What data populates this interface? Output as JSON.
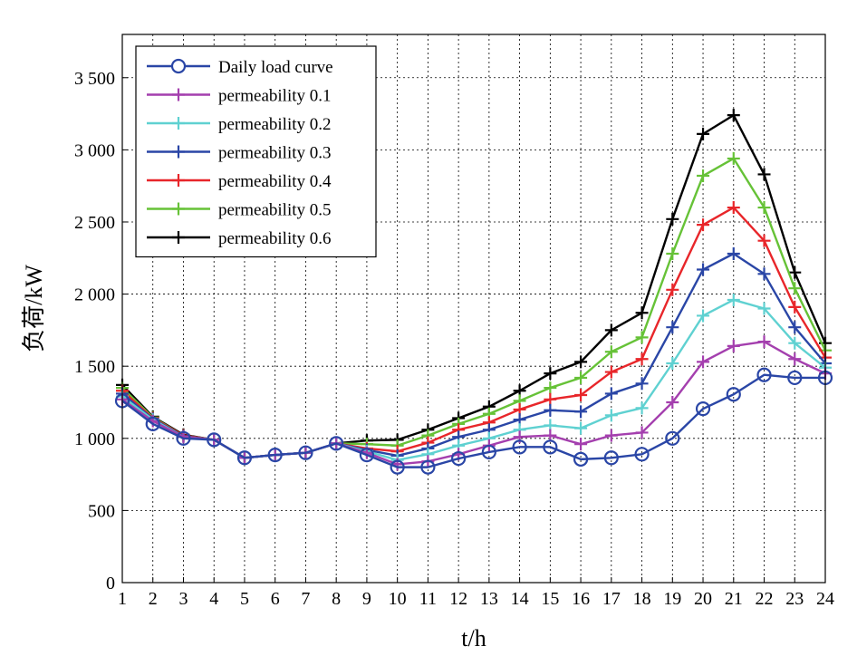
{
  "chart_data": {
    "type": "line",
    "xlabel": "t/h",
    "ylabel": "负荷/kW",
    "x": [
      1,
      2,
      3,
      4,
      5,
      6,
      7,
      8,
      9,
      10,
      11,
      12,
      13,
      14,
      15,
      16,
      17,
      18,
      19,
      20,
      21,
      22,
      23,
      24
    ],
    "xlim": [
      1,
      24
    ],
    "ylim": [
      0,
      3800
    ],
    "yticks": [
      0,
      500,
      1000,
      1500,
      2000,
      2500,
      3000,
      3500
    ],
    "ytick_labels": [
      "0",
      "500",
      "1 000",
      "1 500",
      "2 000",
      "2 500",
      "3 000",
      "3 500"
    ],
    "xtick_labels": [
      "1",
      "2",
      "3",
      "4",
      "5",
      "6",
      "7",
      "8",
      "9",
      "10",
      "11",
      "12",
      "13",
      "14",
      "15",
      "16",
      "17",
      "18",
      "19",
      "20",
      "21",
      "22",
      "23",
      "24"
    ],
    "grid": true,
    "legend_position": "top-left",
    "series": [
      {
        "name": "Daily load curve",
        "color": "#2a46a6",
        "marker": "circle",
        "values": [
          1260,
          1100,
          1000,
          990,
          865,
          885,
          900,
          965,
          885,
          800,
          800,
          860,
          905,
          940,
          940,
          855,
          865,
          890,
          1000,
          1205,
          1305,
          1440,
          1420,
          1420
        ]
      },
      {
        "name": "permeability 0.1",
        "color": "#a43fae",
        "marker": "plus",
        "values": [
          1270,
          1120,
          1010,
          990,
          865,
          885,
          900,
          965,
          900,
          820,
          840,
          890,
          950,
          1010,
          1020,
          960,
          1020,
          1040,
          1250,
          1530,
          1640,
          1670,
          1550,
          1450
        ]
      },
      {
        "name": "permeability 0.2",
        "color": "#5fd1d1",
        "marker": "plus",
        "values": [
          1290,
          1130,
          1010,
          990,
          865,
          885,
          900,
          965,
          910,
          850,
          890,
          950,
          1000,
          1060,
          1090,
          1070,
          1160,
          1210,
          1520,
          1850,
          1960,
          1900,
          1660,
          1490
        ]
      },
      {
        "name": "permeability 0.3",
        "color": "#2a46a6",
        "marker": "plus",
        "values": [
          1310,
          1135,
          1015,
          990,
          865,
          885,
          900,
          965,
          920,
          880,
          930,
          1010,
          1060,
          1130,
          1195,
          1185,
          1310,
          1380,
          1770,
          2170,
          2280,
          2140,
          1770,
          1520
        ]
      },
      {
        "name": "permeability 0.4",
        "color": "#e8262a",
        "marker": "plus",
        "values": [
          1330,
          1140,
          1020,
          990,
          865,
          885,
          900,
          965,
          930,
          910,
          970,
          1060,
          1110,
          1200,
          1270,
          1300,
          1460,
          1550,
          2030,
          2480,
          2600,
          2370,
          1910,
          1560
        ]
      },
      {
        "name": "permeability 0.5",
        "color": "#66c237",
        "marker": "plus",
        "values": [
          1350,
          1145,
          1020,
          990,
          865,
          885,
          900,
          965,
          960,
          950,
          1020,
          1100,
          1170,
          1260,
          1350,
          1420,
          1600,
          1700,
          2280,
          2820,
          2940,
          2600,
          2040,
          1610
        ]
      },
      {
        "name": "permeability 0.6",
        "color": "#000000",
        "marker": "plus",
        "values": [
          1370,
          1150,
          1025,
          990,
          865,
          885,
          900,
          965,
          985,
          990,
          1060,
          1140,
          1220,
          1330,
          1450,
          1530,
          1750,
          1870,
          2520,
          3110,
          3240,
          2830,
          2150,
          1660
        ]
      }
    ]
  }
}
